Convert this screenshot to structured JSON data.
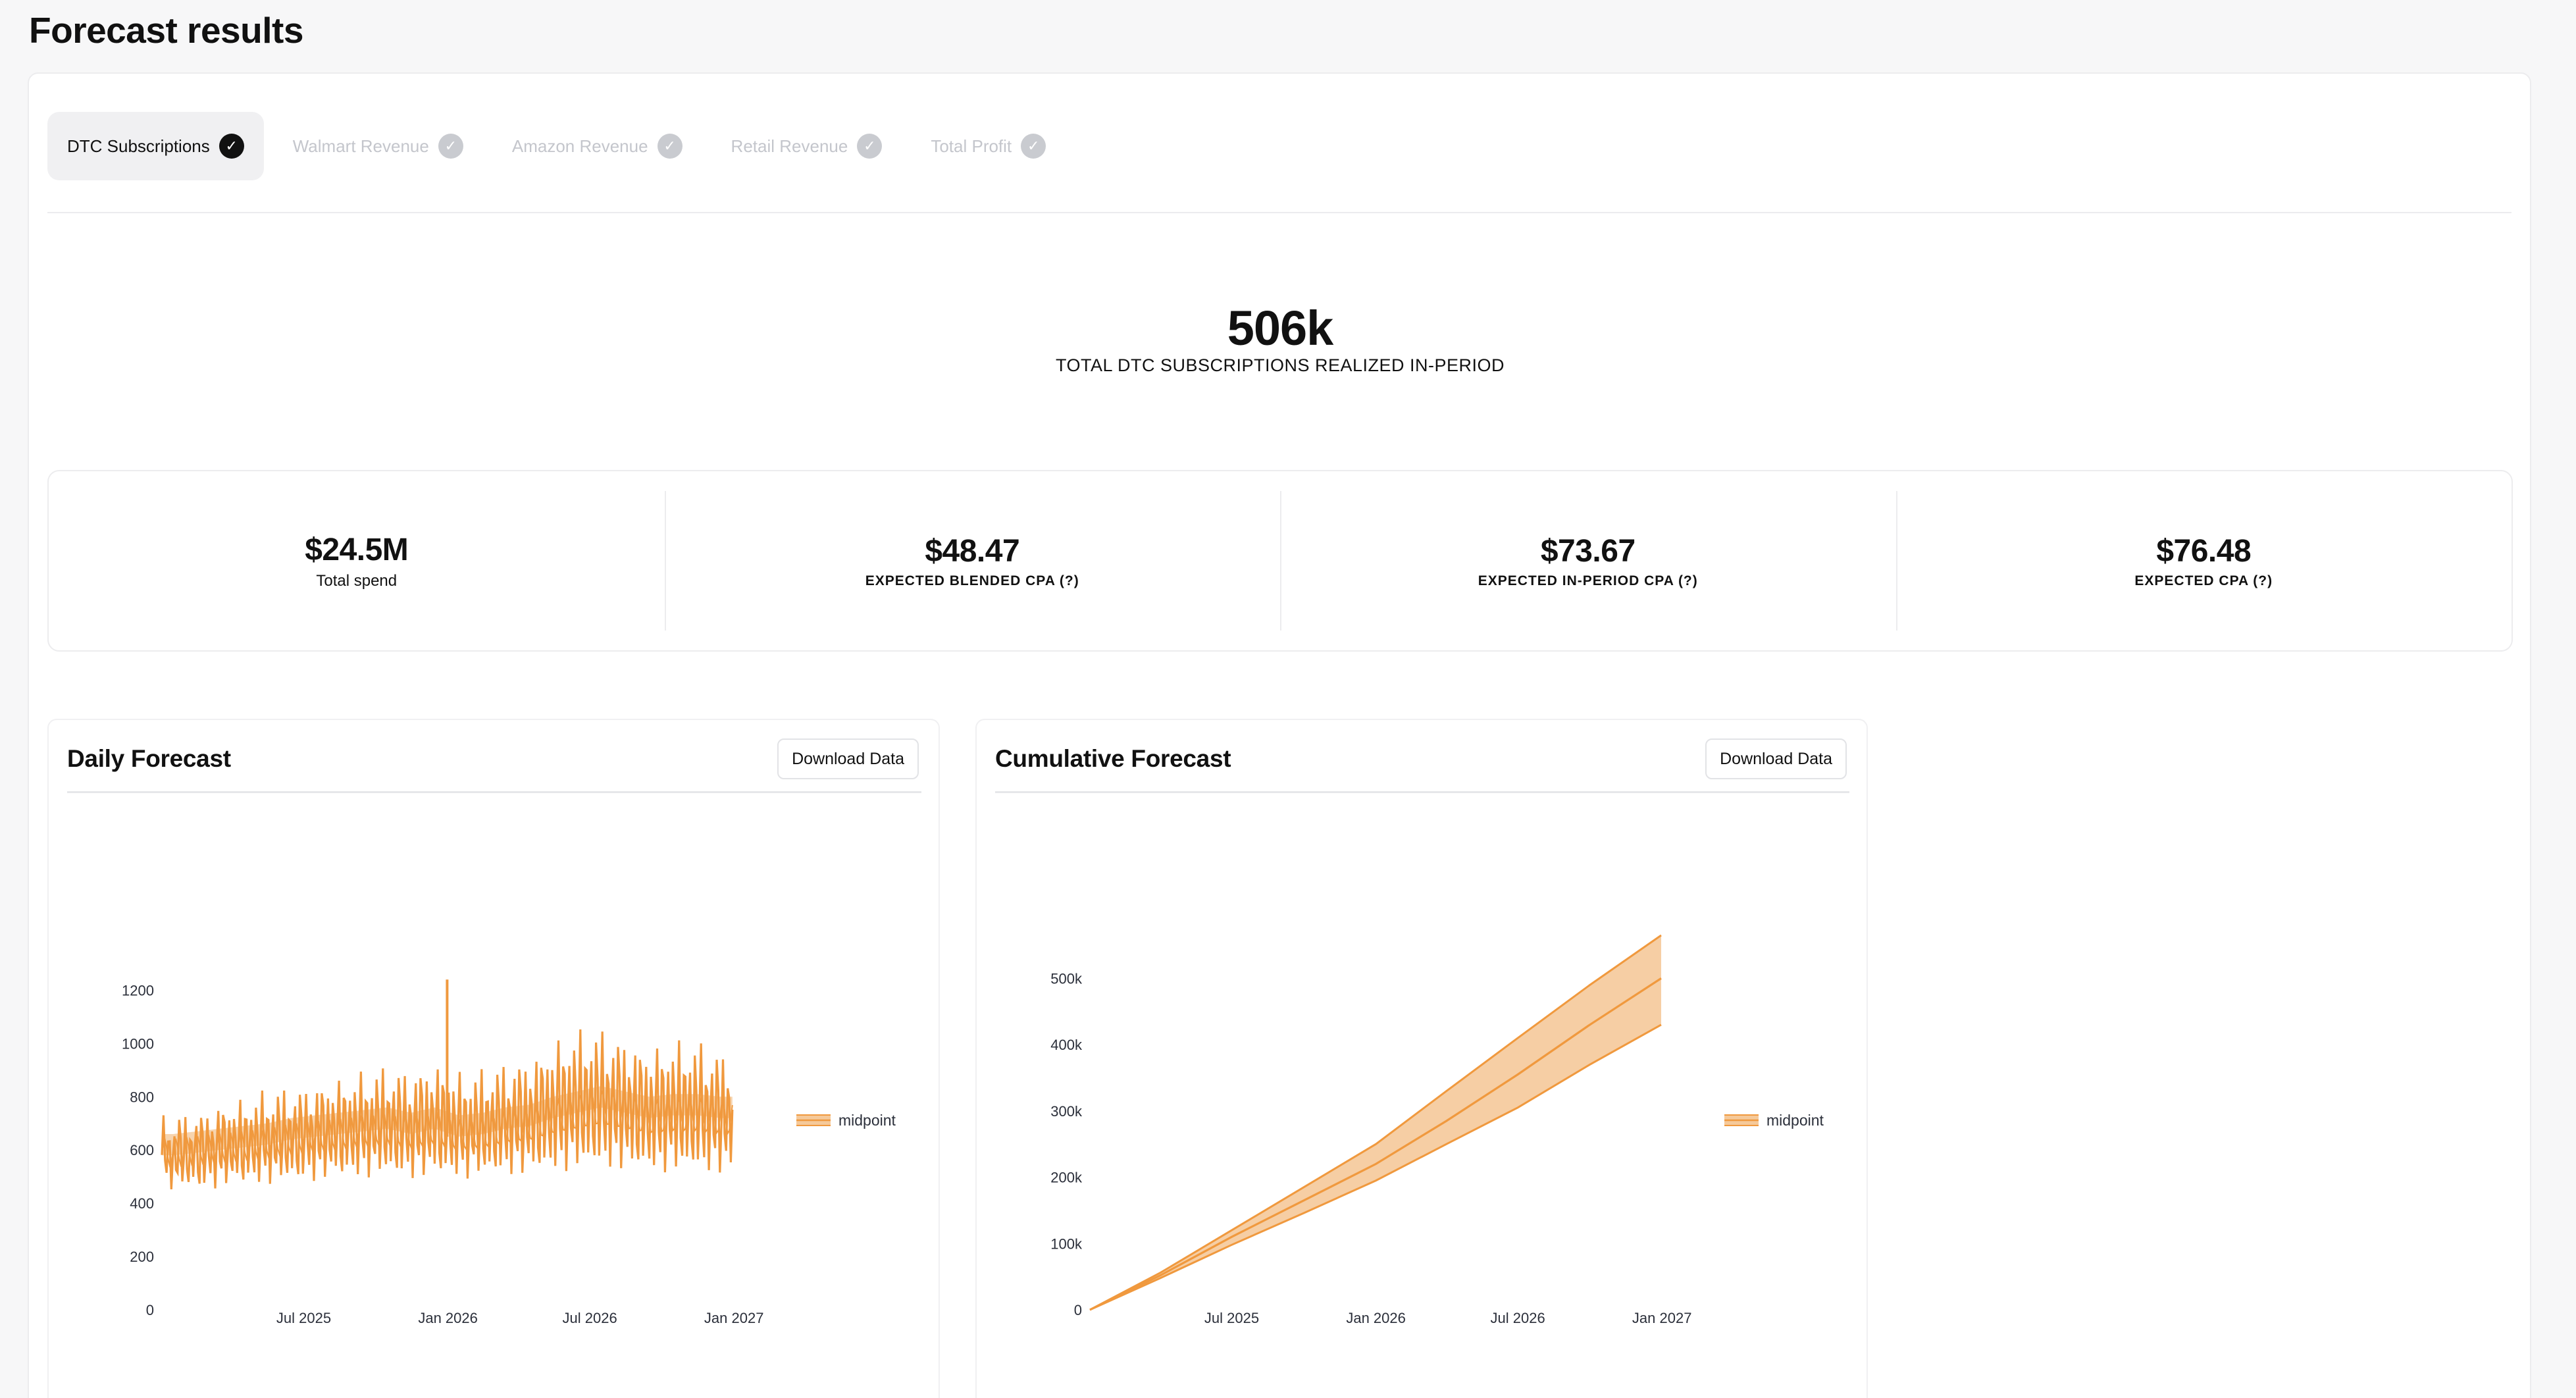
{
  "page": {
    "title": "Forecast results"
  },
  "tabs": [
    {
      "label": "DTC Subscriptions",
      "active": true
    },
    {
      "label": "Walmart Revenue",
      "active": false
    },
    {
      "label": "Amazon Revenue",
      "active": false
    },
    {
      "label": "Retail Revenue",
      "active": false
    },
    {
      "label": "Total Profit",
      "active": false
    }
  ],
  "hero": {
    "value": "506k",
    "label": "TOTAL DTC SUBSCRIPTIONS REALIZED IN-PERIOD"
  },
  "metrics": [
    {
      "value": "$24.5M",
      "label": "Total spend"
    },
    {
      "value": "$48.47",
      "label": "EXPECTED BLENDED CPA (?)"
    },
    {
      "value": "$73.67",
      "label": "EXPECTED IN-PERIOD CPA (?)"
    },
    {
      "value": "$76.48",
      "label": "EXPECTED CPA (?)"
    }
  ],
  "colors": {
    "accent": "#f0993e",
    "band": "#f5c99a"
  },
  "charts": {
    "daily": {
      "title": "Daily Forecast",
      "download_label": "Download Data"
    },
    "cumulative": {
      "title": "Cumulative Forecast",
      "download_label": "Download Data"
    }
  },
  "chart_data": [
    {
      "type": "line",
      "title": "Daily Forecast",
      "x_range": [
        "2025-01-01",
        "2026-12-31"
      ],
      "xticks": [
        "Jul 2025",
        "Jan 2026",
        "Jul 2026",
        "Jan 2027"
      ],
      "ylim": [
        0,
        1300
      ],
      "yticks": [
        0,
        200,
        400,
        600,
        800,
        1000,
        1200
      ],
      "legend": {
        "position": "right",
        "entries": [
          "midpoint"
        ]
      },
      "series": [
        {
          "name": "midpoint",
          "x": [
            "2025-01",
            "2025-02",
            "2025-03",
            "2025-04",
            "2025-05",
            "2025-06",
            "2025-07",
            "2025-08",
            "2025-09",
            "2025-10",
            "2025-11",
            "2025-12",
            "2026-01",
            "2026-02",
            "2026-03",
            "2026-04",
            "2026-05",
            "2026-06",
            "2026-07",
            "2026-08",
            "2026-09",
            "2026-10",
            "2026-11",
            "2026-12"
          ],
          "low": [
            550,
            545,
            560,
            570,
            575,
            580,
            590,
            600,
            605,
            610,
            600,
            610,
            600,
            605,
            615,
            620,
            630,
            640,
            650,
            640,
            630,
            630,
            630,
            625
          ],
          "mid": [
            620,
            630,
            640,
            650,
            660,
            680,
            690,
            700,
            710,
            720,
            700,
            720,
            690,
            700,
            720,
            730,
            760,
            780,
            800,
            780,
            760,
            770,
            770,
            760
          ],
          "high": [
            750,
            770,
            800,
            820,
            850,
            860,
            880,
            900,
            920,
            940,
            930,
            960,
            920,
            930,
            960,
            980,
            1040,
            1080,
            1090,
            1050,
            1020,
            1040,
            1040,
            1000
          ]
        }
      ],
      "annotations": [
        {
          "x": "2025-12-31",
          "y": 1240,
          "label": ""
        }
      ]
    },
    {
      "type": "area",
      "title": "Cumulative Forecast",
      "x_range": [
        "2025-01-01",
        "2026-12-31"
      ],
      "xticks": [
        "Jul 2025",
        "Jan 2026",
        "Jul 2026",
        "Jan 2027"
      ],
      "ylim": [
        0,
        560000
      ],
      "yticks": [
        0,
        100000,
        200000,
        300000,
        400000,
        500000
      ],
      "ytick_labels": [
        "0",
        "100k",
        "200k",
        "300k",
        "400k",
        "500k"
      ],
      "legend": {
        "position": "right",
        "entries": [
          "midpoint"
        ]
      },
      "series": [
        {
          "name": "midpoint",
          "x": [
            "2025-01-01",
            "2025-04-01",
            "2025-07-01",
            "2025-10-01",
            "2026-01-01",
            "2026-04-01",
            "2026-07-01",
            "2026-10-01",
            "2026-12-31"
          ],
          "low": [
            0,
            48000,
            98000,
            146000,
            195000,
            250000,
            305000,
            370000,
            430000
          ],
          "mid": [
            0,
            52000,
            110000,
            165000,
            220000,
            285000,
            355000,
            430000,
            500000
          ],
          "high": [
            0,
            56000,
            120000,
            185000,
            250000,
            330000,
            410000,
            490000,
            565000
          ]
        }
      ]
    }
  ]
}
